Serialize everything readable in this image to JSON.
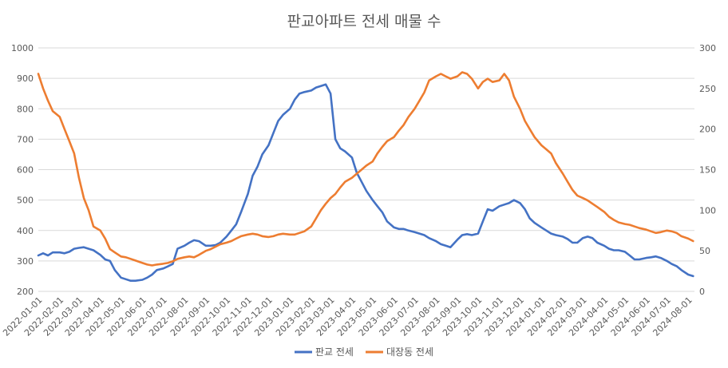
{
  "chart_data": {
    "type": "line",
    "title": "판교아파트 전세 매물 수",
    "xlabel": "",
    "ylabel": "",
    "x_tick_labels": [
      "2022-01-01",
      "2022-02-01",
      "2022-03-01",
      "2022-04-01",
      "2022-05-01",
      "2022-06-01",
      "2022-07-01",
      "2022-08-01",
      "2022-09-01",
      "2022-10-01",
      "2022-11-01",
      "2022-12-01",
      "2023-01-01",
      "2023-02-01",
      "2023-03-01",
      "2023-04-01",
      "2023-05-01",
      "2023-06-01",
      "2023-07-01",
      "2023-08-01",
      "2023-09-01",
      "2023-10-01",
      "2023-11-01",
      "2023-12-01",
      "2024-01-01",
      "2024-02-01",
      "2024-03-01",
      "2024-04-01",
      "2024-05-01",
      "2024-06-01",
      "2024-07-01",
      "2024-08-01"
    ],
    "y_left": {
      "min": 200,
      "max": 1000,
      "ticks": [
        "200",
        "300",
        "400",
        "500",
        "600",
        "700",
        "800",
        "900",
        "1000"
      ]
    },
    "y_right": {
      "min": 0,
      "max": 300,
      "ticks": [
        "0",
        "50",
        "100",
        "150",
        "200",
        "250",
        "300"
      ]
    },
    "grid": true,
    "legend_position": "bottom",
    "series": [
      {
        "name": "판교 전세",
        "axis": "left",
        "color": "#4472C4",
        "points": [
          [
            "2022-01-01",
            318
          ],
          [
            "2022-01-08",
            325
          ],
          [
            "2022-01-15",
            318
          ],
          [
            "2022-01-22",
            328
          ],
          [
            "2022-02-01",
            328
          ],
          [
            "2022-02-08",
            325
          ],
          [
            "2022-02-15",
            330
          ],
          [
            "2022-02-22",
            340
          ],
          [
            "2022-03-01",
            343
          ],
          [
            "2022-03-08",
            345
          ],
          [
            "2022-03-15",
            340
          ],
          [
            "2022-03-22",
            335
          ],
          [
            "2022-04-01",
            320
          ],
          [
            "2022-04-08",
            305
          ],
          [
            "2022-04-15",
            300
          ],
          [
            "2022-04-22",
            270
          ],
          [
            "2022-05-01",
            245
          ],
          [
            "2022-05-08",
            240
          ],
          [
            "2022-05-15",
            235
          ],
          [
            "2022-05-22",
            235
          ],
          [
            "2022-06-01",
            238
          ],
          [
            "2022-06-08",
            245
          ],
          [
            "2022-06-15",
            255
          ],
          [
            "2022-06-22",
            270
          ],
          [
            "2022-07-01",
            275
          ],
          [
            "2022-07-08",
            282
          ],
          [
            "2022-07-15",
            290
          ],
          [
            "2022-07-22",
            340
          ],
          [
            "2022-08-01",
            350
          ],
          [
            "2022-08-08",
            360
          ],
          [
            "2022-08-15",
            368
          ],
          [
            "2022-08-22",
            365
          ],
          [
            "2022-09-01",
            350
          ],
          [
            "2022-09-08",
            350
          ],
          [
            "2022-09-15",
            352
          ],
          [
            "2022-09-22",
            360
          ],
          [
            "2022-10-01",
            380
          ],
          [
            "2022-10-08",
            400
          ],
          [
            "2022-10-15",
            420
          ],
          [
            "2022-10-22",
            460
          ],
          [
            "2022-11-01",
            520
          ],
          [
            "2022-11-08",
            580
          ],
          [
            "2022-11-15",
            610
          ],
          [
            "2022-11-22",
            650
          ],
          [
            "2022-12-01",
            680
          ],
          [
            "2022-12-08",
            720
          ],
          [
            "2022-12-15",
            760
          ],
          [
            "2022-12-22",
            780
          ],
          [
            "2023-01-01",
            800
          ],
          [
            "2023-01-08",
            830
          ],
          [
            "2023-01-15",
            850
          ],
          [
            "2023-01-22",
            855
          ],
          [
            "2023-02-01",
            860
          ],
          [
            "2023-02-08",
            870
          ],
          [
            "2023-02-15",
            875
          ],
          [
            "2023-02-22",
            880
          ],
          [
            "2023-03-01",
            850
          ],
          [
            "2023-03-08",
            700
          ],
          [
            "2023-03-15",
            670
          ],
          [
            "2023-03-22",
            660
          ],
          [
            "2023-04-01",
            640
          ],
          [
            "2023-04-08",
            590
          ],
          [
            "2023-04-15",
            560
          ],
          [
            "2023-04-22",
            530
          ],
          [
            "2023-05-01",
            500
          ],
          [
            "2023-05-08",
            480
          ],
          [
            "2023-05-15",
            460
          ],
          [
            "2023-05-22",
            430
          ],
          [
            "2023-06-01",
            410
          ],
          [
            "2023-06-08",
            405
          ],
          [
            "2023-06-15",
            405
          ],
          [
            "2023-06-22",
            400
          ],
          [
            "2023-07-01",
            395
          ],
          [
            "2023-07-08",
            390
          ],
          [
            "2023-07-15",
            385
          ],
          [
            "2023-07-22",
            375
          ],
          [
            "2023-08-01",
            365
          ],
          [
            "2023-08-08",
            355
          ],
          [
            "2023-08-15",
            350
          ],
          [
            "2023-08-22",
            345
          ],
          [
            "2023-09-01",
            370
          ],
          [
            "2023-09-08",
            385
          ],
          [
            "2023-09-15",
            388
          ],
          [
            "2023-09-22",
            385
          ],
          [
            "2023-10-01",
            390
          ],
          [
            "2023-10-08",
            430
          ],
          [
            "2023-10-15",
            470
          ],
          [
            "2023-10-22",
            465
          ],
          [
            "2023-11-01",
            480
          ],
          [
            "2023-11-08",
            485
          ],
          [
            "2023-11-15",
            490
          ],
          [
            "2023-11-22",
            500
          ],
          [
            "2023-12-01",
            490
          ],
          [
            "2023-12-08",
            470
          ],
          [
            "2023-12-15",
            440
          ],
          [
            "2023-12-22",
            425
          ],
          [
            "2024-01-01",
            410
          ],
          [
            "2024-01-08",
            400
          ],
          [
            "2024-01-15",
            390
          ],
          [
            "2024-01-22",
            385
          ],
          [
            "2024-02-01",
            380
          ],
          [
            "2024-02-08",
            372
          ],
          [
            "2024-02-15",
            360
          ],
          [
            "2024-02-22",
            360
          ],
          [
            "2024-03-01",
            375
          ],
          [
            "2024-03-08",
            380
          ],
          [
            "2024-03-15",
            375
          ],
          [
            "2024-03-22",
            360
          ],
          [
            "2024-04-01",
            350
          ],
          [
            "2024-04-08",
            340
          ],
          [
            "2024-04-15",
            335
          ],
          [
            "2024-04-22",
            335
          ],
          [
            "2024-05-01",
            330
          ],
          [
            "2024-05-08",
            318
          ],
          [
            "2024-05-15",
            305
          ],
          [
            "2024-05-22",
            305
          ],
          [
            "2024-06-01",
            310
          ],
          [
            "2024-06-08",
            312
          ],
          [
            "2024-06-15",
            315
          ],
          [
            "2024-06-22",
            310
          ],
          [
            "2024-07-01",
            300
          ],
          [
            "2024-07-08",
            290
          ],
          [
            "2024-07-15",
            283
          ],
          [
            "2024-07-22",
            270
          ],
          [
            "2024-08-01",
            255
          ],
          [
            "2024-08-08",
            250
          ]
        ]
      },
      {
        "name": "대장동 전세",
        "axis": "right",
        "color": "#ED7D31",
        "points": [
          [
            "2022-01-01",
            268
          ],
          [
            "2022-01-08",
            250
          ],
          [
            "2022-01-15",
            235
          ],
          [
            "2022-01-22",
            222
          ],
          [
            "2022-02-01",
            215
          ],
          [
            "2022-02-08",
            200
          ],
          [
            "2022-02-15",
            185
          ],
          [
            "2022-02-22",
            170
          ],
          [
            "2022-03-01",
            140
          ],
          [
            "2022-03-08",
            115
          ],
          [
            "2022-03-15",
            100
          ],
          [
            "2022-03-22",
            80
          ],
          [
            "2022-04-01",
            75
          ],
          [
            "2022-04-08",
            65
          ],
          [
            "2022-04-15",
            52
          ],
          [
            "2022-04-22",
            48
          ],
          [
            "2022-05-01",
            43
          ],
          [
            "2022-05-08",
            42
          ],
          [
            "2022-05-15",
            40
          ],
          [
            "2022-05-22",
            38
          ],
          [
            "2022-06-01",
            35
          ],
          [
            "2022-06-08",
            33
          ],
          [
            "2022-06-15",
            32
          ],
          [
            "2022-06-22",
            33
          ],
          [
            "2022-07-01",
            34
          ],
          [
            "2022-07-08",
            35
          ],
          [
            "2022-07-15",
            37
          ],
          [
            "2022-07-22",
            40
          ],
          [
            "2022-08-01",
            42
          ],
          [
            "2022-08-08",
            43
          ],
          [
            "2022-08-15",
            42
          ],
          [
            "2022-08-22",
            45
          ],
          [
            "2022-09-01",
            50
          ],
          [
            "2022-09-08",
            52
          ],
          [
            "2022-09-15",
            55
          ],
          [
            "2022-09-22",
            58
          ],
          [
            "2022-10-01",
            60
          ],
          [
            "2022-10-08",
            62
          ],
          [
            "2022-10-15",
            65
          ],
          [
            "2022-10-22",
            68
          ],
          [
            "2022-11-01",
            70
          ],
          [
            "2022-11-08",
            71
          ],
          [
            "2022-11-15",
            70
          ],
          [
            "2022-11-22",
            68
          ],
          [
            "2022-12-01",
            67
          ],
          [
            "2022-12-08",
            68
          ],
          [
            "2022-12-15",
            70
          ],
          [
            "2022-12-22",
            71
          ],
          [
            "2023-01-01",
            70
          ],
          [
            "2023-01-08",
            70
          ],
          [
            "2023-01-15",
            72
          ],
          [
            "2023-01-22",
            74
          ],
          [
            "2023-02-01",
            80
          ],
          [
            "2023-02-08",
            90
          ],
          [
            "2023-02-15",
            100
          ],
          [
            "2023-02-22",
            108
          ],
          [
            "2023-03-01",
            115
          ],
          [
            "2023-03-08",
            120
          ],
          [
            "2023-03-15",
            128
          ],
          [
            "2023-03-22",
            135
          ],
          [
            "2023-04-01",
            140
          ],
          [
            "2023-04-08",
            145
          ],
          [
            "2023-04-15",
            150
          ],
          [
            "2023-04-22",
            155
          ],
          [
            "2023-05-01",
            160
          ],
          [
            "2023-05-08",
            170
          ],
          [
            "2023-05-15",
            178
          ],
          [
            "2023-05-22",
            185
          ],
          [
            "2023-06-01",
            190
          ],
          [
            "2023-06-08",
            198
          ],
          [
            "2023-06-15",
            205
          ],
          [
            "2023-06-22",
            215
          ],
          [
            "2023-07-01",
            225
          ],
          [
            "2023-07-08",
            235
          ],
          [
            "2023-07-15",
            245
          ],
          [
            "2023-07-22",
            260
          ],
          [
            "2023-08-01",
            265
          ],
          [
            "2023-08-08",
            268
          ],
          [
            "2023-08-15",
            265
          ],
          [
            "2023-08-22",
            262
          ],
          [
            "2023-09-01",
            265
          ],
          [
            "2023-09-08",
            270
          ],
          [
            "2023-09-15",
            268
          ],
          [
            "2023-09-22",
            262
          ],
          [
            "2023-10-01",
            250
          ],
          [
            "2023-10-08",
            258
          ],
          [
            "2023-10-15",
            262
          ],
          [
            "2023-10-22",
            258
          ],
          [
            "2023-11-01",
            260
          ],
          [
            "2023-11-08",
            268
          ],
          [
            "2023-11-15",
            260
          ],
          [
            "2023-11-22",
            240
          ],
          [
            "2023-12-01",
            225
          ],
          [
            "2023-12-08",
            210
          ],
          [
            "2023-12-15",
            200
          ],
          [
            "2023-12-22",
            190
          ],
          [
            "2024-01-01",
            180
          ],
          [
            "2024-01-08",
            175
          ],
          [
            "2024-01-15",
            170
          ],
          [
            "2024-01-22",
            158
          ],
          [
            "2024-02-01",
            145
          ],
          [
            "2024-02-08",
            135
          ],
          [
            "2024-02-15",
            125
          ],
          [
            "2024-02-22",
            118
          ],
          [
            "2024-03-01",
            115
          ],
          [
            "2024-03-08",
            112
          ],
          [
            "2024-03-15",
            108
          ],
          [
            "2024-03-22",
            104
          ],
          [
            "2024-04-01",
            98
          ],
          [
            "2024-04-08",
            92
          ],
          [
            "2024-04-15",
            88
          ],
          [
            "2024-04-22",
            85
          ],
          [
            "2024-05-01",
            83
          ],
          [
            "2024-05-08",
            82
          ],
          [
            "2024-05-15",
            80
          ],
          [
            "2024-05-22",
            78
          ],
          [
            "2024-06-01",
            76
          ],
          [
            "2024-06-08",
            74
          ],
          [
            "2024-06-15",
            72
          ],
          [
            "2024-06-22",
            73
          ],
          [
            "2024-07-01",
            75
          ],
          [
            "2024-07-08",
            74
          ],
          [
            "2024-07-15",
            72
          ],
          [
            "2024-07-22",
            68
          ],
          [
            "2024-08-01",
            65
          ],
          [
            "2024-08-08",
            62
          ]
        ]
      }
    ]
  }
}
